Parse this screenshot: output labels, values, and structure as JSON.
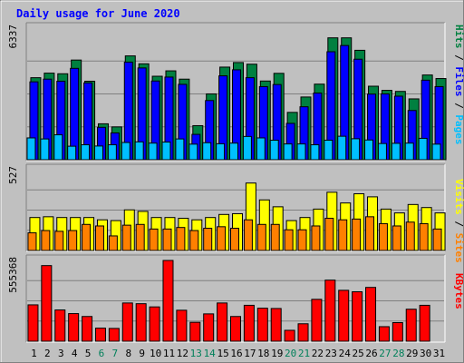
{
  "chart_data": [
    {
      "type": "bar",
      "title": "Daily usage for June 2020",
      "ymax_label": "6337",
      "ylim": [
        0,
        6337
      ],
      "categories": [
        "1",
        "2",
        "3",
        "4",
        "5",
        "6",
        "7",
        "8",
        "9",
        "10",
        "11",
        "12",
        "13",
        "14",
        "15",
        "16",
        "17",
        "18",
        "19",
        "20",
        "21",
        "22",
        "23",
        "24",
        "25",
        "26",
        "27",
        "28",
        "29",
        "30",
        "31"
      ],
      "weekend_days": [
        "6",
        "7",
        "13",
        "14",
        "20",
        "21",
        "27",
        "28"
      ],
      "legend": [
        "Hits",
        "/",
        "Files",
        "/",
        "Pages"
      ],
      "series": [
        {
          "name": "Hits",
          "color": "#008040",
          "values": [
            3950,
            4170,
            4140,
            4800,
            3780,
            1730,
            1580,
            5000,
            4620,
            4020,
            4280,
            3880,
            1640,
            3170,
            4460,
            4680,
            4600,
            3790,
            4160,
            2280,
            3020,
            3640,
            5870,
            5870,
            5270,
            3540,
            3340,
            3290,
            2930,
            4080,
            3910
          ]
        },
        {
          "name": "Files",
          "color": "#0000ff",
          "values": [
            3750,
            3880,
            3780,
            4400,
            3700,
            1560,
            1290,
            4700,
            4420,
            3790,
            3980,
            3630,
            1220,
            2850,
            4040,
            4330,
            3950,
            3520,
            3620,
            1750,
            2550,
            3210,
            5200,
            5500,
            4840,
            3160,
            3170,
            3060,
            2370,
            3830,
            3520
          ]
        },
        {
          "name": "Pages",
          "color": "#00bfff",
          "values": [
            1050,
            1000,
            1200,
            650,
            720,
            660,
            720,
            830,
            860,
            800,
            850,
            1000,
            750,
            820,
            770,
            800,
            1120,
            1050,
            940,
            760,
            760,
            720,
            940,
            1130,
            1010,
            950,
            780,
            790,
            800,
            1030,
            750
          ]
        }
      ]
    },
    {
      "type": "bar",
      "ymax_label": "527",
      "ylim": [
        0,
        527
      ],
      "legend": [
        "Visits",
        "/",
        "Sites"
      ],
      "series": [
        {
          "name": "Visits",
          "color": "#ffff00",
          "values": [
            215,
            220,
            215,
            215,
            215,
            200,
            195,
            265,
            255,
            215,
            215,
            210,
            200,
            215,
            235,
            240,
            440,
            330,
            285,
            195,
            215,
            270,
            380,
            310,
            370,
            350,
            270,
            245,
            300,
            280,
            245
          ]
        },
        {
          "name": "Sites",
          "color": "#ff8000",
          "values": [
            115,
            130,
            125,
            130,
            170,
            160,
            95,
            165,
            170,
            140,
            140,
            150,
            130,
            145,
            155,
            145,
            200,
            170,
            170,
            135,
            135,
            160,
            210,
            200,
            205,
            220,
            175,
            160,
            185,
            175,
            140
          ]
        }
      ]
    },
    {
      "type": "bar",
      "ymax_label": "555368",
      "ylim": [
        0,
        555368
      ],
      "legend": [
        "KBytes"
      ],
      "series": [
        {
          "name": "KBytes",
          "color": "#ff0000",
          "values": [
            250000,
            520000,
            215000,
            190000,
            170000,
            90000,
            88000,
            263000,
            258000,
            236000,
            555368,
            213000,
            130000,
            188000,
            263000,
            170000,
            247000,
            227000,
            225000,
            75000,
            120000,
            288000,
            420000,
            350000,
            340000,
            370000,
            100000,
            128000,
            220000,
            247000,
            0
          ]
        }
      ]
    }
  ]
}
